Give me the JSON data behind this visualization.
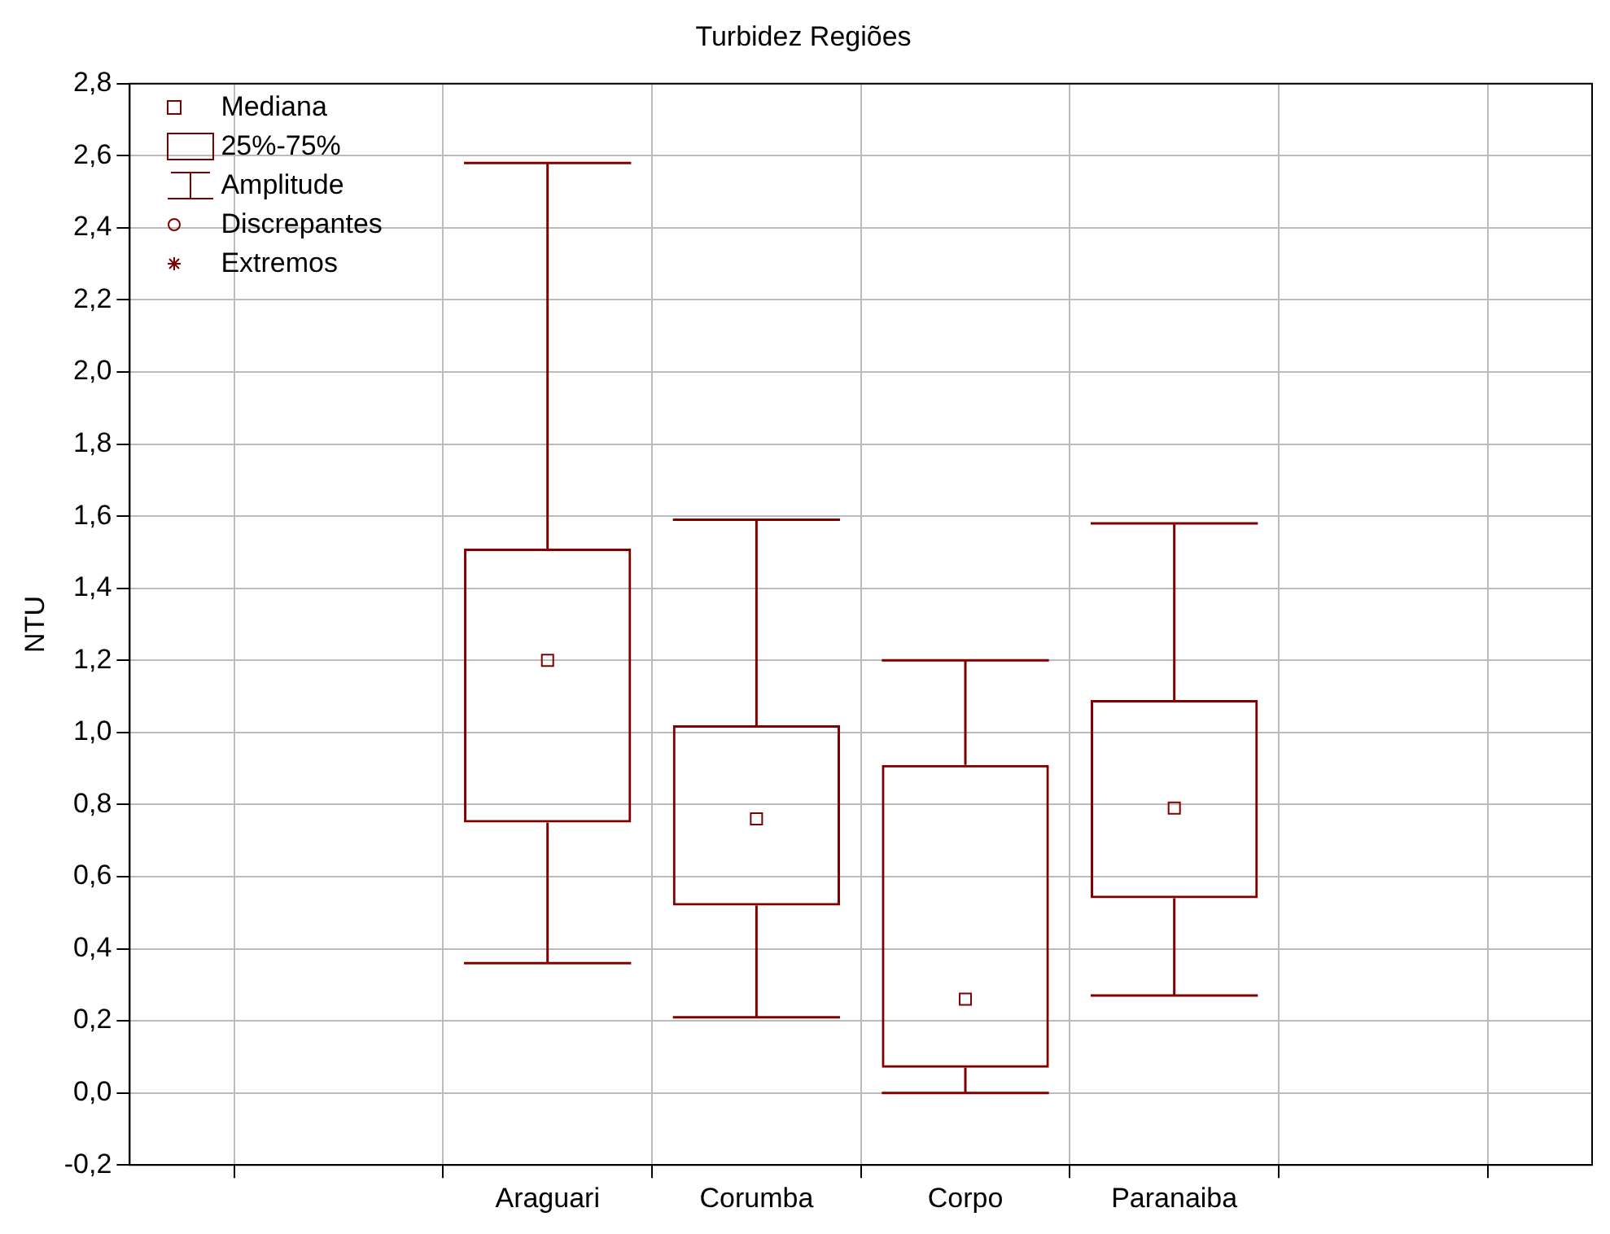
{
  "chart_data": {
    "type": "box",
    "title": "Turbidez Regiões",
    "ylabel": "NTU",
    "categories": [
      null,
      null,
      "Araguari",
      "Corumba",
      "Corpo",
      "Paranaiba",
      null,
      null
    ],
    "boxes": [
      null,
      null,
      {
        "low": 0.36,
        "q1": 0.75,
        "median": 1.2,
        "q3": 1.51,
        "high": 2.58
      },
      {
        "low": 0.21,
        "q1": 0.52,
        "median": 0.76,
        "q3": 1.02,
        "high": 1.59
      },
      {
        "low": 0.0,
        "q1": 0.07,
        "median": 0.26,
        "q3": 0.91,
        "high": 1.2
      },
      {
        "low": 0.27,
        "q1": 0.54,
        "median": 0.79,
        "q3": 1.09,
        "high": 1.58
      },
      null,
      null
    ],
    "color": "#800000",
    "ylim": [
      -0.2,
      2.8
    ],
    "yticks": [
      {
        "value": -0.2,
        "label": "-0,2"
      },
      {
        "value": 0,
        "label": "0,0"
      },
      {
        "value": 0.2,
        "label": "0,2"
      },
      {
        "value": 0.4,
        "label": "0,4"
      },
      {
        "value": 0.6,
        "label": "0,6"
      },
      {
        "value": 0.8,
        "label": "0,8"
      },
      {
        "value": 1.0,
        "label": "1,0"
      },
      {
        "value": 1.2,
        "label": "1,2"
      },
      {
        "value": 1.4,
        "label": "1,4"
      },
      {
        "value": 1.6,
        "label": "1,6"
      },
      {
        "value": 1.8,
        "label": "1,8"
      },
      {
        "value": 2.0,
        "label": "2,0"
      },
      {
        "value": 2.2,
        "label": "2,2"
      },
      {
        "value": 2.4,
        "label": "2,4"
      },
      {
        "value": 2.6,
        "label": "2,6"
      },
      {
        "value": 2.8,
        "label": "2,8"
      }
    ],
    "grid": true,
    "annotations": [
      "Mediana",
      "25%-75%",
      "Amplitude",
      "Discrepantes",
      "Extremos"
    ]
  }
}
